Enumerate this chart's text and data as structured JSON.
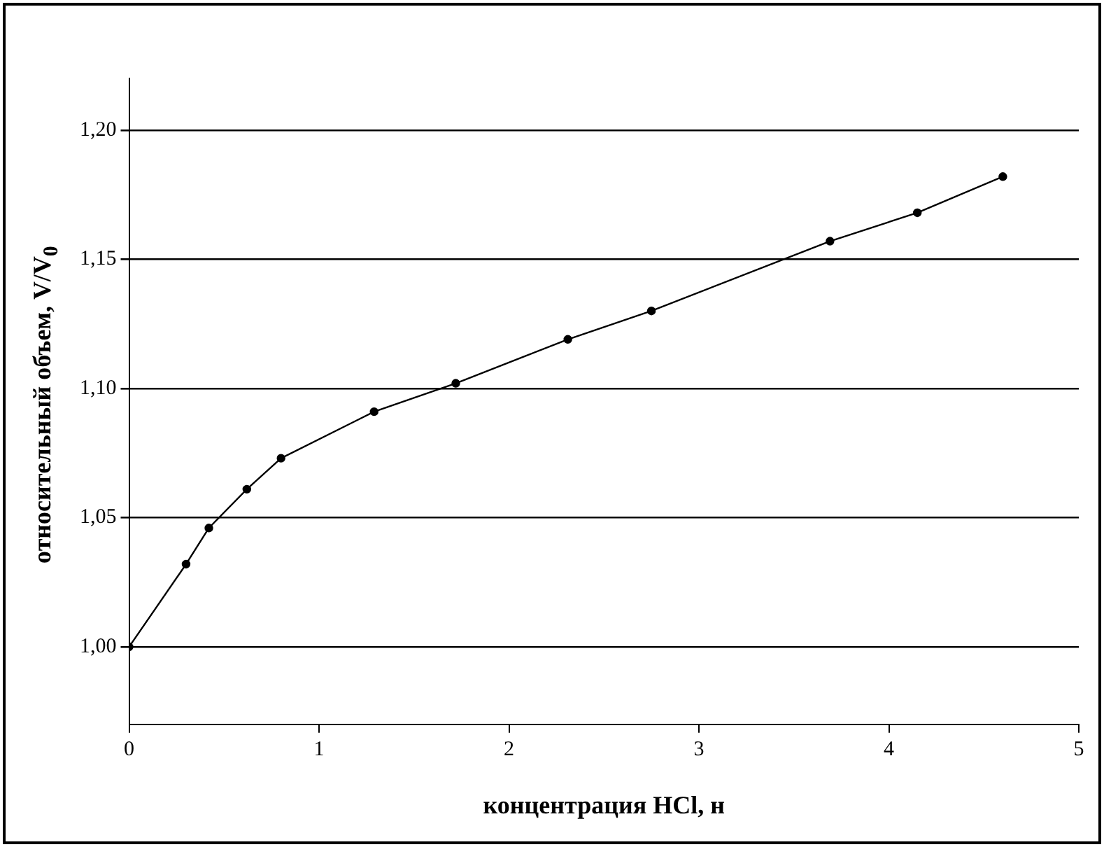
{
  "chart_data": {
    "type": "line",
    "xlabel": "концентрация HCl, н",
    "ylabel": "относительный объем, V/V$_{0}$",
    "x": [
      0,
      0.3,
      0.42,
      0.62,
      0.8,
      1.29,
      1.72,
      2.31,
      2.75,
      3.69,
      4.15,
      4.6
    ],
    "series": [
      {
        "color": "#000000",
        "values": [
          1.0,
          1.032,
          1.046,
          1.061,
          1.073,
          1.091,
          1.102,
          1.119,
          1.13,
          1.157,
          1.168,
          1.182
        ]
      }
    ],
    "xlim": [
      0,
      5
    ],
    "xticks": [
      0,
      1,
      2,
      3,
      4,
      5
    ],
    "ylim": [
      0.97,
      1.22
    ],
    "yticks": [
      {
        "value": 1.0,
        "label": "1,00"
      },
      {
        "value": 1.05,
        "label": "1,05"
      },
      {
        "value": 1.1,
        "label": "1,10"
      },
      {
        "value": 1.15,
        "label": "1,15"
      },
      {
        "value": 1.2,
        "label": "1,20"
      }
    ],
    "grid": "y",
    "legend": false,
    "marker": "circle",
    "line_style": "solid"
  }
}
